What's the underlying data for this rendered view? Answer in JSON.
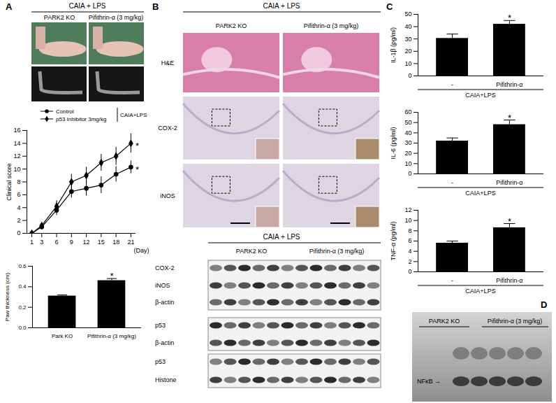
{
  "figure": {
    "panel_a": {
      "letter": "A",
      "header": "CAIA + LPS",
      "columns": [
        "PARK2 KO",
        "Pifithrin-α (3 mg/kg)"
      ]
    },
    "panel_b": {
      "letter": "B",
      "header": "CAIA + LPS",
      "columns": [
        "PARK2 KO",
        "Pifithrin-α (3 mg/kg)"
      ],
      "stain_rows": [
        "H&E",
        "COX-2",
        "iNOS"
      ],
      "blot": {
        "header": "CAIA + LPS",
        "columns": [
          "PARK2 KO",
          "Pifithrin-α (3 mg/kg)"
        ],
        "rows": [
          "COX-2",
          "iNOS",
          "β-actin",
          "p53",
          "β-actin",
          "p53",
          "Histone"
        ]
      }
    },
    "panel_c": {
      "letter": "C"
    },
    "panel_d": {
      "letter": "D",
      "columns": [
        "PARK2 KO",
        "Pifithrin-α (3 mg/kg)"
      ],
      "band_label": "NFκB →"
    }
  },
  "chart_data": [
    {
      "type": "line",
      "ylabel": "Clinical score",
      "xlabel": "(Day)",
      "x": [
        1,
        3,
        6,
        9,
        12,
        15,
        18,
        21
      ],
      "xlim": [
        0,
        22
      ],
      "xticks": [
        1,
        3,
        6,
        9,
        12,
        15,
        18,
        21
      ],
      "ylim": [
        0,
        16
      ],
      "yticks": [
        0,
        2,
        4,
        6,
        8,
        10,
        12,
        14,
        16
      ],
      "legend": "top",
      "legend_title": "CAIA+LPS",
      "series": [
        {
          "name": "Control",
          "color": "#000000",
          "marker": "circle",
          "line_style": "solid",
          "values": [
            0,
            1.0,
            3.6,
            6.5,
            7.0,
            7.5,
            9.2,
            10.3
          ],
          "errors": [
            0,
            0.3,
            0.8,
            1.0,
            1.2,
            1.3,
            1.2,
            1.0
          ]
        },
        {
          "name": "p53 Inhibitor 3mg/kg",
          "color": "#000000",
          "marker": "diamond",
          "line_style": "solid",
          "values": [
            0,
            1.2,
            4.2,
            8.0,
            9.0,
            11.0,
            12.0,
            14.0
          ],
          "errors": [
            0,
            0.3,
            0.9,
            1.2,
            1.3,
            1.3,
            1.4,
            1.5
          ]
        }
      ],
      "annotations": [
        {
          "series": "Control",
          "text": "*"
        },
        {
          "series": "p53 Inhibitor 3mg/kg",
          "text": "*"
        }
      ]
    },
    {
      "type": "bar",
      "ylabel": "Paw thickness (cm)",
      "categories": [
        "Park KO",
        "Pifithrin-α (3 mg/kg)"
      ],
      "values": [
        0.31,
        0.46
      ],
      "errors": [
        0.01,
        0.02
      ],
      "color": "#000000",
      "ylim": [
        0,
        0.6
      ],
      "yticks": [
        {
          "value": 0,
          "label": "0.0"
        },
        {
          "value": 0.2,
          "label": "0.2"
        },
        {
          "value": 0.4,
          "label": "0.4"
        },
        {
          "value": 0.6,
          "label": "0.6"
        }
      ],
      "annotations": [
        {
          "category": "Pifithrin-α (3 mg/kg)",
          "text": "*"
        }
      ]
    },
    {
      "type": "bar",
      "ylabel": "IL-1β (pg/ml)",
      "xlabel": "CAIA+LPS",
      "categories": [
        "-",
        "Pifithrin-α"
      ],
      "values": [
        30.5,
        42
      ],
      "errors": [
        3.5,
        3
      ],
      "color": "#000000",
      "ylim": [
        0,
        50
      ],
      "yticks": [
        0,
        10,
        20,
        30,
        40,
        50
      ],
      "annotations": [
        {
          "category": "Pifithrin-α",
          "text": "*"
        }
      ]
    },
    {
      "type": "bar",
      "ylabel": "IL-6 (pg/ml)",
      "xlabel": "CAIA+LPS",
      "categories": [
        "-",
        "Pifithrin-α"
      ],
      "values": [
        32,
        48
      ],
      "errors": [
        3,
        4.5
      ],
      "color": "#000000",
      "ylim": [
        0,
        60
      ],
      "yticks": [
        0,
        10,
        20,
        30,
        40,
        50,
        60
      ],
      "annotations": [
        {
          "category": "Pifithrin-α",
          "text": "*"
        }
      ]
    },
    {
      "type": "bar",
      "ylabel": "TNF-α (pg/ml)",
      "xlabel": "CAIA+LPS",
      "categories": [
        "-",
        "Pifithrin-α"
      ],
      "values": [
        5.6,
        8.6
      ],
      "errors": [
        0.4,
        0.8
      ],
      "color": "#000000",
      "ylim": [
        0,
        12
      ],
      "yticks": [
        0,
        2,
        4,
        6,
        8,
        10,
        12
      ],
      "annotations": [
        {
          "category": "Pifithrin-α",
          "text": "*"
        }
      ]
    }
  ]
}
